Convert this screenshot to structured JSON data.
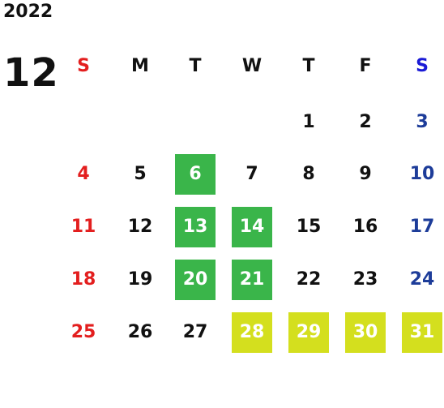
{
  "year": "2022",
  "month": "12",
  "weekdays": [
    "S",
    "M",
    "T",
    "W",
    "T",
    "F",
    "S"
  ],
  "days": [
    {
      "label": "1",
      "col": 4,
      "row": 0,
      "kind": "normal"
    },
    {
      "label": "2",
      "col": 5,
      "row": 0,
      "kind": "normal"
    },
    {
      "label": "3",
      "col": 6,
      "row": 0,
      "kind": "normal"
    },
    {
      "label": "4",
      "col": 0,
      "row": 1,
      "kind": "normal"
    },
    {
      "label": "5",
      "col": 1,
      "row": 1,
      "kind": "normal"
    },
    {
      "label": "6",
      "col": 2,
      "row": 1,
      "kind": "green"
    },
    {
      "label": "7",
      "col": 3,
      "row": 1,
      "kind": "normal"
    },
    {
      "label": "8",
      "col": 4,
      "row": 1,
      "kind": "normal"
    },
    {
      "label": "9",
      "col": 5,
      "row": 1,
      "kind": "normal"
    },
    {
      "label": "10",
      "col": 6,
      "row": 1,
      "kind": "normal"
    },
    {
      "label": "11",
      "col": 0,
      "row": 2,
      "kind": "normal"
    },
    {
      "label": "12",
      "col": 1,
      "row": 2,
      "kind": "normal"
    },
    {
      "label": "13",
      "col": 2,
      "row": 2,
      "kind": "green"
    },
    {
      "label": "14",
      "col": 3,
      "row": 2,
      "kind": "green"
    },
    {
      "label": "15",
      "col": 4,
      "row": 2,
      "kind": "normal"
    },
    {
      "label": "16",
      "col": 5,
      "row": 2,
      "kind": "normal"
    },
    {
      "label": "17",
      "col": 6,
      "row": 2,
      "kind": "normal"
    },
    {
      "label": "18",
      "col": 0,
      "row": 3,
      "kind": "normal"
    },
    {
      "label": "19",
      "col": 1,
      "row": 3,
      "kind": "normal"
    },
    {
      "label": "20",
      "col": 2,
      "row": 3,
      "kind": "green"
    },
    {
      "label": "21",
      "col": 3,
      "row": 3,
      "kind": "green"
    },
    {
      "label": "22",
      "col": 4,
      "row": 3,
      "kind": "normal"
    },
    {
      "label": "23",
      "col": 5,
      "row": 3,
      "kind": "normal"
    },
    {
      "label": "24",
      "col": 6,
      "row": 3,
      "kind": "normal"
    },
    {
      "label": "25",
      "col": 0,
      "row": 4,
      "kind": "normal"
    },
    {
      "label": "26",
      "col": 1,
      "row": 4,
      "kind": "normal"
    },
    {
      "label": "27",
      "col": 2,
      "row": 4,
      "kind": "normal"
    },
    {
      "label": "28",
      "col": 3,
      "row": 4,
      "kind": "yellow"
    },
    {
      "label": "29",
      "col": 4,
      "row": 4,
      "kind": "yellow"
    },
    {
      "label": "30",
      "col": 5,
      "row": 4,
      "kind": "yellow"
    },
    {
      "label": "31",
      "col": 6,
      "row": 4,
      "kind": "yellow"
    }
  ],
  "colors": {
    "sunday": "#e31e1e",
    "saturday": "#1d3c99",
    "saturday_header": "#1a1ad6",
    "highlight_green": "#3ab54a",
    "highlight_yellow": "#d4df1e"
  }
}
